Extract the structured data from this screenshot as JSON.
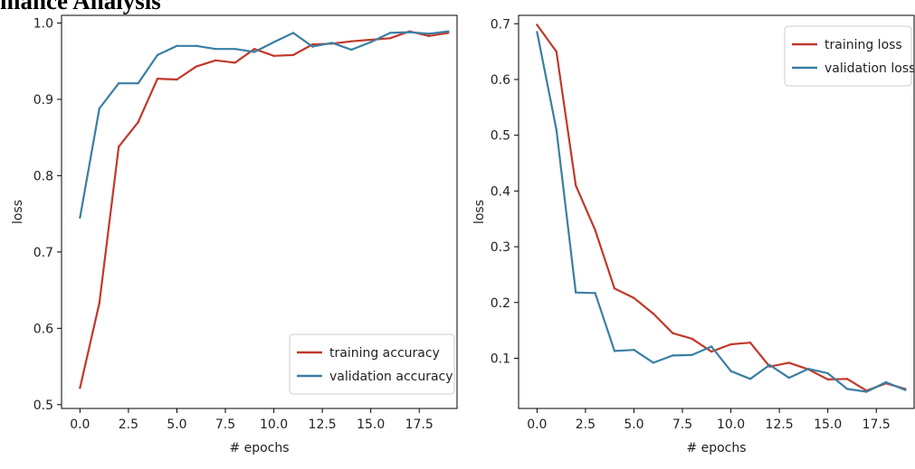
{
  "header": {
    "title": "mance Analysis"
  },
  "colors": {
    "training": "#c0392b",
    "validation": "#3a7fa3",
    "axis": "#000000",
    "background": "#ffffff"
  },
  "chart_data": [
    {
      "type": "line",
      "title": "",
      "xlabel": "# epochs",
      "ylabel": "loss",
      "xlim": [
        -0.95,
        19.45
      ],
      "ylim": [
        0.495,
        1.01
      ],
      "xticks": [
        0,
        2.5,
        5,
        7.5,
        10,
        12.5,
        15,
        17.5
      ],
      "xtick_labels": [
        "0.0",
        "2.5",
        "5.0",
        "7.5",
        "10.0",
        "12.5",
        "15.0",
        "17.5"
      ],
      "yticks": [
        0.5,
        0.6,
        0.7,
        0.8,
        0.9,
        1.0
      ],
      "ytick_labels": [
        "0.5",
        "0.6",
        "0.7",
        "0.8",
        "0.9",
        "1.0"
      ],
      "legend_position": "lower-right",
      "x": [
        0,
        1,
        2,
        3,
        4,
        5,
        6,
        7,
        8,
        9,
        10,
        11,
        12,
        13,
        14,
        15,
        16,
        17,
        18,
        19
      ],
      "series": [
        {
          "name": "training accuracy",
          "color": "#c0392b",
          "values": [
            0.522,
            0.633,
            0.838,
            0.87,
            0.927,
            0.926,
            0.943,
            0.951,
            0.948,
            0.966,
            0.957,
            0.958,
            0.972,
            0.973,
            0.976,
            0.978,
            0.98,
            0.989,
            0.983,
            0.987
          ]
        },
        {
          "name": "validation accuracy",
          "color": "#3a7fa3",
          "values": [
            0.745,
            0.888,
            0.921,
            0.921,
            0.958,
            0.97,
            0.97,
            0.966,
            0.966,
            0.962,
            0.975,
            0.987,
            0.969,
            0.974,
            0.965,
            0.975,
            0.987,
            0.988,
            0.986,
            0.989
          ]
        }
      ]
    },
    {
      "type": "line",
      "title": "",
      "xlabel": "# epochs",
      "ylabel": "loss",
      "xlim": [
        -0.95,
        19.45
      ],
      "ylim": [
        0.01,
        0.715
      ],
      "xticks": [
        0,
        2.5,
        5,
        7.5,
        10,
        12.5,
        15,
        17.5
      ],
      "xtick_labels": [
        "0.0",
        "2.5",
        "5.0",
        "7.5",
        "10.0",
        "12.5",
        "15.0",
        "17.5"
      ],
      "yticks": [
        0.1,
        0.2,
        0.3,
        0.4,
        0.5,
        0.6,
        0.7
      ],
      "ytick_labels": [
        "0.1",
        "0.2",
        "0.3",
        "0.4",
        "0.5",
        "0.6",
        "0.7"
      ],
      "legend_position": "upper-right",
      "x": [
        0,
        1,
        2,
        3,
        4,
        5,
        6,
        7,
        8,
        9,
        10,
        11,
        12,
        13,
        14,
        15,
        16,
        17,
        18,
        19
      ],
      "series": [
        {
          "name": "training loss",
          "color": "#c0392b",
          "values": [
            0.698,
            0.65,
            0.41,
            0.33,
            0.225,
            0.208,
            0.18,
            0.145,
            0.135,
            0.112,
            0.125,
            0.128,
            0.085,
            0.092,
            0.08,
            0.062,
            0.063,
            0.042,
            0.055,
            0.045
          ]
        },
        {
          "name": "validation loss",
          "color": "#3a7fa3",
          "values": [
            0.685,
            0.51,
            0.218,
            0.217,
            0.113,
            0.115,
            0.092,
            0.105,
            0.106,
            0.121,
            0.077,
            0.063,
            0.088,
            0.065,
            0.081,
            0.073,
            0.045,
            0.04,
            0.057,
            0.043
          ]
        }
      ]
    }
  ]
}
